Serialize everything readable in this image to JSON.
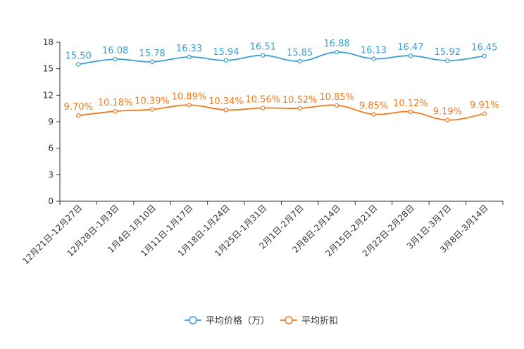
{
  "chart_data": {
    "type": "line",
    "categories": [
      "12月21日-12月27日",
      "12月28日-1月3日",
      "1月4日-1月10日",
      "1月11日-1月17日",
      "1月18日-1月24日",
      "1月25日-1月31日",
      "2月1日-2月7日",
      "2月8日-2月14日",
      "2月15日-2月21日",
      "2月22日-2月28日",
      "3月1日-3月7日",
      "3月8日-3月14日"
    ],
    "ylim": [
      0,
      18
    ],
    "yticks": [
      "0",
      "3",
      "6",
      "9",
      "12",
      "15",
      "18"
    ],
    "series": [
      {
        "name": "平均价格（万）",
        "color": "#3a9fd1",
        "values": [
          15.5,
          16.08,
          15.78,
          16.33,
          15.94,
          16.51,
          15.85,
          16.88,
          16.13,
          16.47,
          15.92,
          16.45
        ],
        "labels": [
          "15.50",
          "16.08",
          "15.78",
          "16.33",
          "15.94",
          "16.51",
          "15.85",
          "16.88",
          "16.13",
          "16.47",
          "15.92",
          "16.45"
        ]
      },
      {
        "name": "平均折扣",
        "color": "#f07a1e",
        "values": [
          9.7,
          10.18,
          10.39,
          10.89,
          10.34,
          10.56,
          10.52,
          10.85,
          9.85,
          10.12,
          9.19,
          9.91
        ],
        "labels": [
          "9.70%",
          "10.18%",
          "10.39%",
          "10.89%",
          "10.34%",
          "10.56%",
          "10.52%",
          "10.85%",
          "9.85%",
          "10.12%",
          "9.19%",
          "9.91%"
        ]
      }
    ],
    "legend_position": "bottom"
  }
}
